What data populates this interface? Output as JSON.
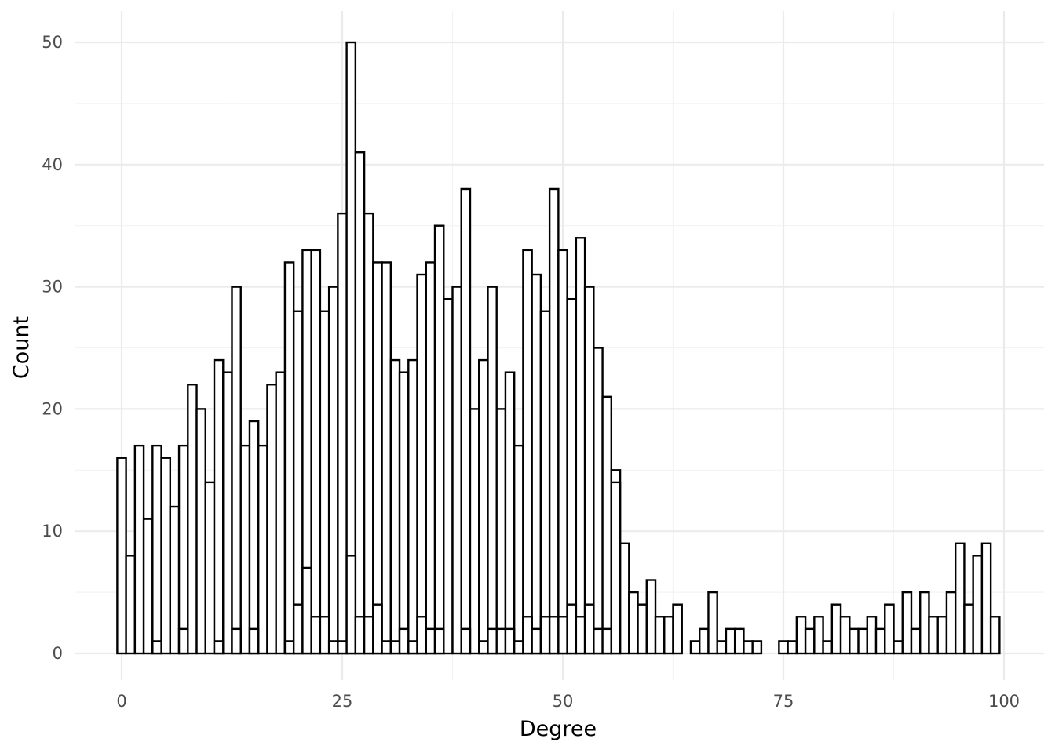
{
  "chart_data": {
    "type": "bar",
    "subtype": "histogram-overlay",
    "xlabel": "Degree",
    "ylabel": "Count",
    "xlim": [
      -5,
      104
    ],
    "ylim": [
      -2.5,
      52.5
    ],
    "x_ticks": [
      0,
      25,
      50,
      75,
      100
    ],
    "y_ticks": [
      0,
      10,
      20,
      30,
      40,
      50
    ],
    "bin_width": 1,
    "grid": true,
    "bar_fill": "#ffffff",
    "bar_outline": "#000000",
    "series": [
      {
        "x": [
          0,
          1,
          2,
          3,
          4,
          5,
          6,
          7,
          8,
          9,
          10,
          11,
          12,
          13,
          14,
          15,
          16,
          17,
          18,
          19,
          20,
          21,
          22,
          23,
          24,
          25,
          26,
          27,
          28,
          29,
          30,
          31,
          32,
          33,
          34,
          35,
          36,
          37,
          38,
          39,
          40,
          41,
          42,
          43,
          44,
          45,
          46,
          47,
          48,
          49,
          50,
          51,
          52,
          53,
          54,
          55,
          56,
          57,
          58,
          59,
          60,
          61,
          62,
          63,
          65,
          66,
          67,
          68,
          69,
          70,
          71,
          72,
          75,
          76,
          77,
          78,
          79,
          80,
          81,
          82,
          83,
          84,
          85,
          86,
          87,
          88,
          89,
          90,
          91,
          92,
          93,
          94,
          95,
          96,
          97,
          98,
          99
        ],
        "values": [
          16,
          8,
          17,
          11,
          17,
          16,
          12,
          17,
          22,
          20,
          14,
          24,
          23,
          30,
          17,
          19,
          17,
          22,
          23,
          32,
          28,
          33,
          33,
          28,
          30,
          36,
          50,
          41,
          36,
          32,
          32,
          24,
          23,
          24,
          31,
          32,
          35,
          29,
          30,
          38,
          20,
          24,
          30,
          20,
          23,
          17,
          33,
          31,
          28,
          38,
          33,
          29,
          34,
          30,
          25,
          21,
          15,
          9,
          5,
          4,
          6,
          3,
          3,
          4,
          1,
          2,
          5,
          1,
          2,
          2,
          1,
          1,
          1,
          1,
          3,
          2,
          3,
          1,
          4,
          3,
          2,
          2,
          3,
          2,
          4,
          1,
          5,
          2,
          5,
          3,
          3,
          5,
          9,
          4,
          8,
          9,
          3
        ]
      },
      {
        "x": [
          0,
          1,
          2,
          3,
          4,
          5,
          6,
          7,
          8,
          9,
          10,
          11,
          12,
          13,
          14,
          15,
          16,
          17,
          18,
          19,
          20,
          21,
          22,
          23,
          24,
          25,
          26,
          27,
          28,
          29,
          30,
          31,
          32,
          33,
          34,
          35,
          36,
          37,
          38,
          39,
          40,
          41,
          42,
          43,
          44,
          45,
          46,
          47,
          48,
          49,
          50,
          51,
          52,
          53,
          54,
          55,
          56
        ],
        "values": [
          0,
          0,
          0,
          0,
          1,
          0,
          0,
          2,
          0,
          0,
          0,
          1,
          0,
          2,
          0,
          2,
          0,
          0,
          0,
          1,
          4,
          7,
          3,
          3,
          1,
          1,
          8,
          3,
          3,
          4,
          1,
          1,
          2,
          1,
          3,
          2,
          2,
          0,
          0,
          2,
          0,
          1,
          2,
          2,
          2,
          1,
          3,
          2,
          3,
          3,
          3,
          4,
          3,
          4,
          2,
          2,
          14
        ]
      }
    ]
  }
}
